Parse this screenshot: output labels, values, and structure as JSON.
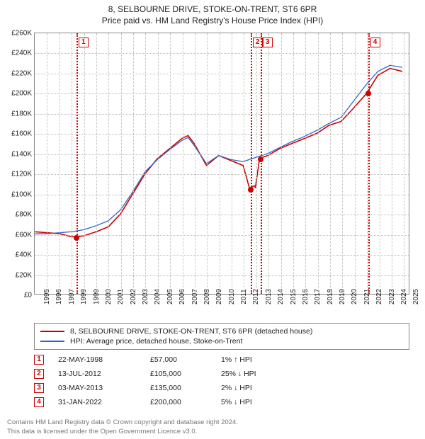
{
  "title": {
    "line1": "8, SELBOURNE DRIVE, STOKE-ON-TRENT, ST6 6PR",
    "line2": "Price paid vs. HM Land Registry's House Price Index (HPI)"
  },
  "chart": {
    "type": "line",
    "background_color": "#ffffff",
    "grid_color": "#bbbbbb",
    "border_color": "#888888",
    "xlim": [
      1995,
      2025.5
    ],
    "ylim": [
      0,
      260000
    ],
    "ytick_step": 20000,
    "yticks": [
      {
        "v": 0,
        "label": "£0"
      },
      {
        "v": 20000,
        "label": "£20K"
      },
      {
        "v": 40000,
        "label": "£40K"
      },
      {
        "v": 60000,
        "label": "£60K"
      },
      {
        "v": 80000,
        "label": "£80K"
      },
      {
        "v": 100000,
        "label": "£100K"
      },
      {
        "v": 120000,
        "label": "£120K"
      },
      {
        "v": 140000,
        "label": "£140K"
      },
      {
        "v": 160000,
        "label": "£160K"
      },
      {
        "v": 180000,
        "label": "£180K"
      },
      {
        "v": 200000,
        "label": "£200K"
      },
      {
        "v": 220000,
        "label": "£220K"
      },
      {
        "v": 240000,
        "label": "£240K"
      },
      {
        "v": 260000,
        "label": "£260K"
      }
    ],
    "xticks": [
      1995,
      1996,
      1997,
      1998,
      1999,
      2000,
      2001,
      2002,
      2003,
      2004,
      2005,
      2006,
      2007,
      2008,
      2009,
      2010,
      2011,
      2012,
      2013,
      2014,
      2015,
      2016,
      2017,
      2018,
      2019,
      2020,
      2021,
      2022,
      2023,
      2024,
      2025
    ],
    "series": [
      {
        "name": "price_paid",
        "color": "#cc0000",
        "width": 1.6,
        "points": [
          [
            1995,
            62000
          ],
          [
            1996,
            61000
          ],
          [
            1997,
            60000
          ],
          [
            1998,
            57000
          ],
          [
            1998.4,
            57000
          ],
          [
            1999,
            58000
          ],
          [
            2000,
            62000
          ],
          [
            2001,
            67000
          ],
          [
            2002,
            80000
          ],
          [
            2003,
            100000
          ],
          [
            2004,
            120000
          ],
          [
            2005,
            135000
          ],
          [
            2006,
            145000
          ],
          [
            2007,
            155000
          ],
          [
            2007.5,
            158000
          ],
          [
            2008,
            150000
          ],
          [
            2009,
            128000
          ],
          [
            2010,
            138000
          ],
          [
            2011,
            133000
          ],
          [
            2012,
            128000
          ],
          [
            2012.53,
            105000
          ],
          [
            2012.9,
            108000
          ],
          [
            2013.0,
            106000
          ],
          [
            2013.34,
            135000
          ],
          [
            2014,
            138000
          ],
          [
            2015,
            145000
          ],
          [
            2016,
            150000
          ],
          [
            2017,
            155000
          ],
          [
            2018,
            160000
          ],
          [
            2019,
            168000
          ],
          [
            2020,
            172000
          ],
          [
            2021,
            185000
          ],
          [
            2022.08,
            200000
          ],
          [
            2023,
            218000
          ],
          [
            2024,
            225000
          ],
          [
            2025,
            222000
          ]
        ]
      },
      {
        "name": "hpi",
        "color": "#3764c4",
        "width": 1.3,
        "points": [
          [
            1995,
            60000
          ],
          [
            1996,
            60000
          ],
          [
            1997,
            61000
          ],
          [
            1998,
            62000
          ],
          [
            1999,
            64000
          ],
          [
            2000,
            68000
          ],
          [
            2001,
            73000
          ],
          [
            2002,
            84000
          ],
          [
            2003,
            102000
          ],
          [
            2004,
            122000
          ],
          [
            2005,
            134000
          ],
          [
            2006,
            144000
          ],
          [
            2007,
            153000
          ],
          [
            2007.5,
            156000
          ],
          [
            2008,
            148000
          ],
          [
            2009,
            130000
          ],
          [
            2010,
            138000
          ],
          [
            2011,
            134000
          ],
          [
            2012,
            132000
          ],
          [
            2013,
            136000
          ],
          [
            2014,
            140000
          ],
          [
            2015,
            146000
          ],
          [
            2016,
            152000
          ],
          [
            2017,
            157000
          ],
          [
            2018,
            163000
          ],
          [
            2019,
            170000
          ],
          [
            2020,
            176000
          ],
          [
            2021,
            192000
          ],
          [
            2022,
            208000
          ],
          [
            2023,
            222000
          ],
          [
            2024,
            228000
          ],
          [
            2025,
            226000
          ]
        ]
      }
    ],
    "event_lines": [
      {
        "n": "1",
        "x": 1998.39
      },
      {
        "n": "2",
        "x": 2012.53
      },
      {
        "n": "3",
        "x": 2013.34
      },
      {
        "n": "4",
        "x": 2022.08
      }
    ],
    "event_points": [
      {
        "x": 1998.39,
        "y": 57000
      },
      {
        "x": 2012.53,
        "y": 105000
      },
      {
        "x": 2013.34,
        "y": 135000
      },
      {
        "x": 2022.08,
        "y": 200000
      }
    ],
    "event_line_color": "#cc0000"
  },
  "legend": {
    "items": [
      {
        "color": "#cc0000",
        "label": "8, SELBOURNE DRIVE, STOKE-ON-TRENT, ST6 6PR (detached house)"
      },
      {
        "color": "#3764c4",
        "label": "HPI: Average price, detached house, Stoke-on-Trent"
      }
    ]
  },
  "events": [
    {
      "n": "1",
      "date": "22-MAY-1998",
      "price": "£57,000",
      "diff": "1% ↑ HPI"
    },
    {
      "n": "2",
      "date": "13-JUL-2012",
      "price": "£105,000",
      "diff": "25% ↓ HPI"
    },
    {
      "n": "3",
      "date": "03-MAY-2013",
      "price": "£135,000",
      "diff": "2% ↓ HPI"
    },
    {
      "n": "4",
      "date": "31-JAN-2022",
      "price": "£200,000",
      "diff": "5% ↓ HPI"
    }
  ],
  "footer": {
    "line1": "Contains HM Land Registry data © Crown copyright and database right 2024.",
    "line2": "This data is licensed under the Open Government Licence v3.0."
  },
  "fonts": {
    "title_size": 12,
    "axis_size": 10,
    "legend_size": 10.5
  }
}
